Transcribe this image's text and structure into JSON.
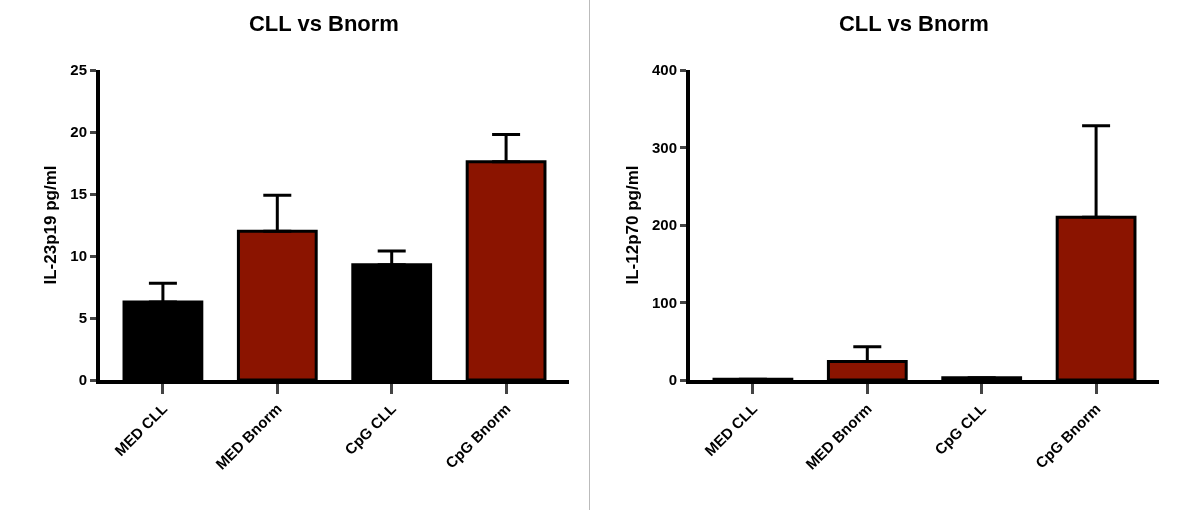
{
  "chart_data": [
    {
      "type": "bar",
      "title": "CLL vs Bnorm",
      "ylabel": "IL-23p19 pg/ml",
      "categories": [
        "MED CLL",
        "MED Bnorm",
        "CpG CLL",
        "CpG Bnorm"
      ],
      "values": [
        6.3,
        12,
        9.3,
        17.6
      ],
      "colors": [
        "#000000",
        "#8b1400",
        "#000000",
        "#8b1400"
      ],
      "errors": [
        [
          6.3,
          7.8
        ],
        [
          12,
          14.9
        ],
        [
          9.3,
          10.4
        ],
        [
          17.6,
          19.8
        ]
      ],
      "ylim": [
        0,
        25
      ],
      "yticks": [
        0,
        5,
        10,
        15,
        20,
        25
      ],
      "grid": false
    },
    {
      "type": "bar",
      "title": "CLL vs Bnorm",
      "ylabel": "IL-12p70 pg/ml",
      "categories": [
        "MED CLL",
        "MED Bnorm",
        "CpG CLL",
        "CpG Bnorm"
      ],
      "values": [
        1,
        24,
        3,
        210
      ],
      "colors": [
        "#000000",
        "#8b1400",
        "#000000",
        "#8b1400"
      ],
      "errors": [
        null,
        [
          24,
          43
        ],
        null,
        [
          210,
          328
        ]
      ],
      "ylim": [
        0,
        400
      ],
      "yticks": [
        0,
        100,
        200,
        300,
        400
      ],
      "grid": false
    }
  ]
}
